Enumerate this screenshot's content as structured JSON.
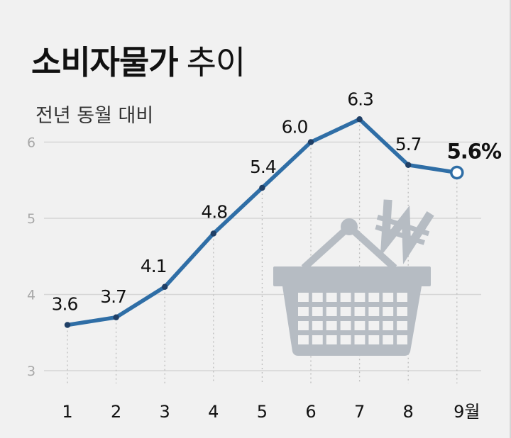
{
  "chart_data": {
    "type": "line",
    "title": "소비자물가",
    "title_suffix": "추이",
    "subtitle": "전년 동월 대비",
    "categories": [
      "1",
      "2",
      "3",
      "4",
      "5",
      "6",
      "7",
      "8",
      "9월"
    ],
    "series": [
      {
        "values": [
          3.6,
          3.7,
          4.1,
          4.8,
          5.4,
          6.0,
          6.3,
          5.7,
          5.6
        ],
        "labels": [
          "3.6",
          "3.7",
          "4.1",
          "4.8",
          "5.4",
          "6.0",
          "6.3",
          "5.7",
          "5.6%"
        ],
        "color": "#2f6ea6"
      }
    ],
    "y_ticks": [
      "3",
      "4",
      "5",
      "6"
    ],
    "ylim": [
      3,
      6.3
    ],
    "grid": true,
    "highlight_last_point": true
  },
  "colors": {
    "background": "#f1f1f1",
    "line": "#2f6ea6",
    "grid": "#d6d6d6",
    "illustration": "#b6bcc3"
  },
  "illustration": "shopping-basket-with-won-sign"
}
